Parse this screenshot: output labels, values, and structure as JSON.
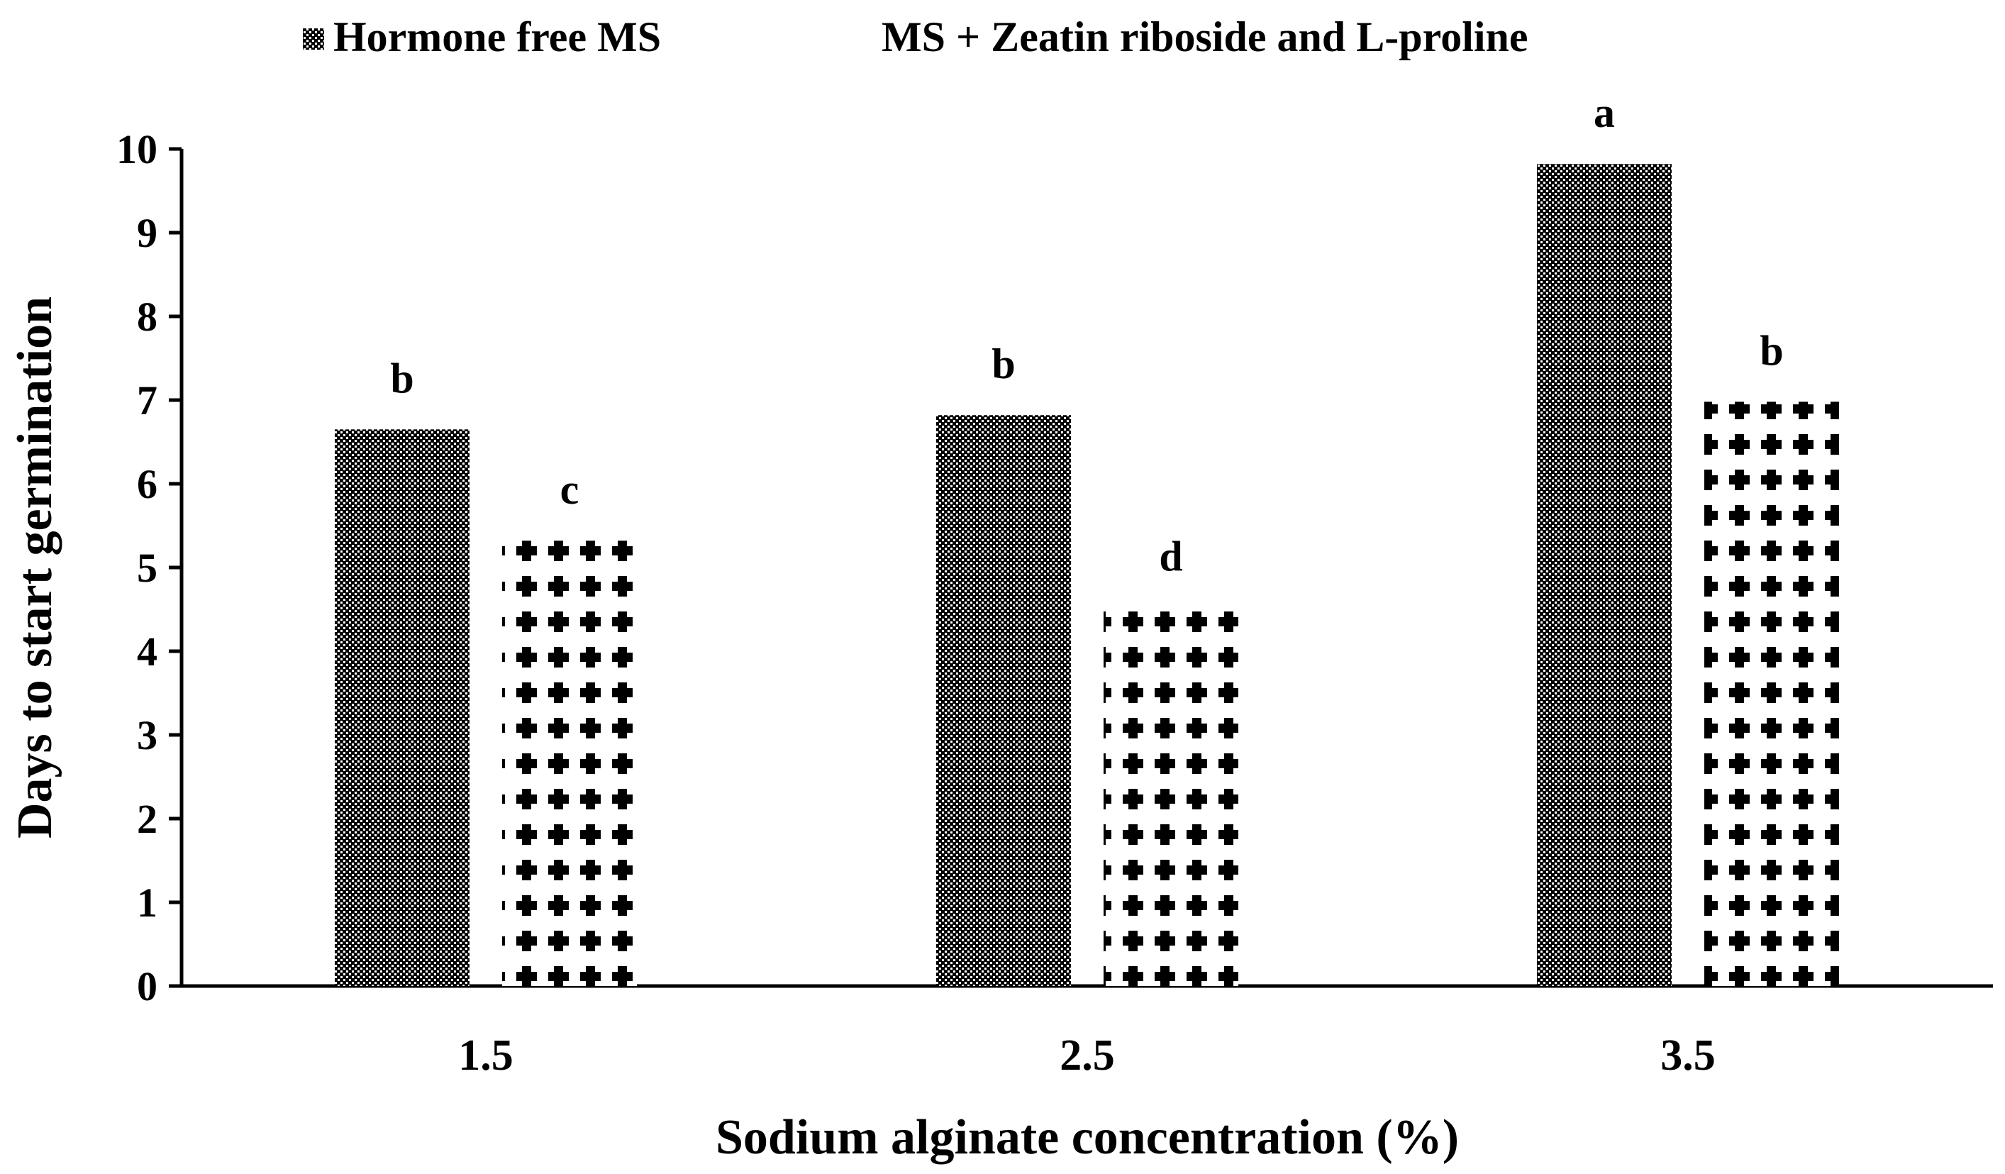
{
  "chart_data": {
    "type": "bar",
    "title": "",
    "xlabel": "Sodium alginate concentration (%)",
    "ylabel": "Days to start germination",
    "categories": [
      "1.5",
      "2.5",
      "3.5"
    ],
    "ylim": [
      0,
      10
    ],
    "yticks": [
      "0",
      "1",
      "2",
      "3",
      "4",
      "5",
      "6",
      "7",
      "8",
      "9",
      "10"
    ],
    "grid": false,
    "legend_position": "top",
    "series": [
      {
        "name": "Hormone free MS",
        "values": [
          6.65,
          6.82,
          9.82
        ],
        "labels": [
          "b",
          "b",
          "a"
        ],
        "pattern": "fine-checker",
        "color": "#000000"
      },
      {
        "name": "MS + Zeatin riboside and L-proline",
        "values": [
          5.32,
          4.52,
          6.98
        ],
        "labels": [
          "c",
          "d",
          "b"
        ],
        "pattern": "plus-dots",
        "color": "#000000"
      }
    ]
  }
}
